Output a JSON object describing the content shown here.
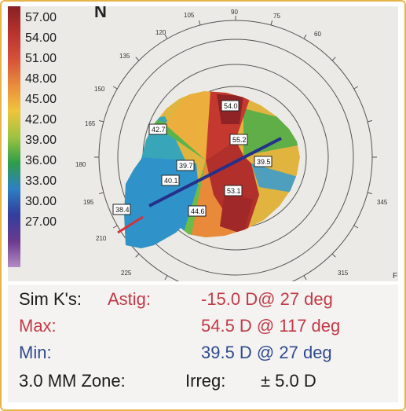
{
  "legend": {
    "labels": [
      "57.00",
      "54.00",
      "51.00",
      "48.00",
      "45.00",
      "42.00",
      "39.00",
      "36.00",
      "33.00",
      "30.00",
      "27.00"
    ],
    "colors": [
      "#8a1f25",
      "#b7322d",
      "#d5503a",
      "#e98a3c",
      "#f0c43c",
      "#9fc43f",
      "#2e9d4a",
      "#2d7fc3",
      "#333d9e",
      "#6a3a8e",
      "#b48bc3"
    ]
  },
  "map": {
    "axis_labels": [
      "105",
      "90",
      "75",
      "120",
      "60",
      "135",
      "150",
      "165",
      "180",
      "195",
      "210",
      "225",
      "315",
      "345"
    ],
    "values": [
      "54.0",
      "42.7",
      "55.2",
      "39.7",
      "39.5",
      "40.1",
      "53.1",
      "38.4",
      "44.6"
    ],
    "top_letter": "N",
    "edge_letter": "F"
  },
  "readout": {
    "simk_label": "Sim K's:",
    "astig_label": "Astig:",
    "astig_value": "-15.0 D@ 27 deg",
    "max_label": "Max:",
    "max_value": "54.5 D @ 117 deg",
    "min_label": "Min:",
    "min_value": "39.5 D @ 27 deg",
    "zone_label": "3.0 MM Zone:",
    "irreg_label": "Irreg:",
    "irreg_value": "± 5.0 D"
  },
  "colors": {
    "red_text": "#c23a48",
    "blue_text": "#2f4a8e",
    "dark_text": "#1c1c1c",
    "frame": "#e8b44a"
  }
}
